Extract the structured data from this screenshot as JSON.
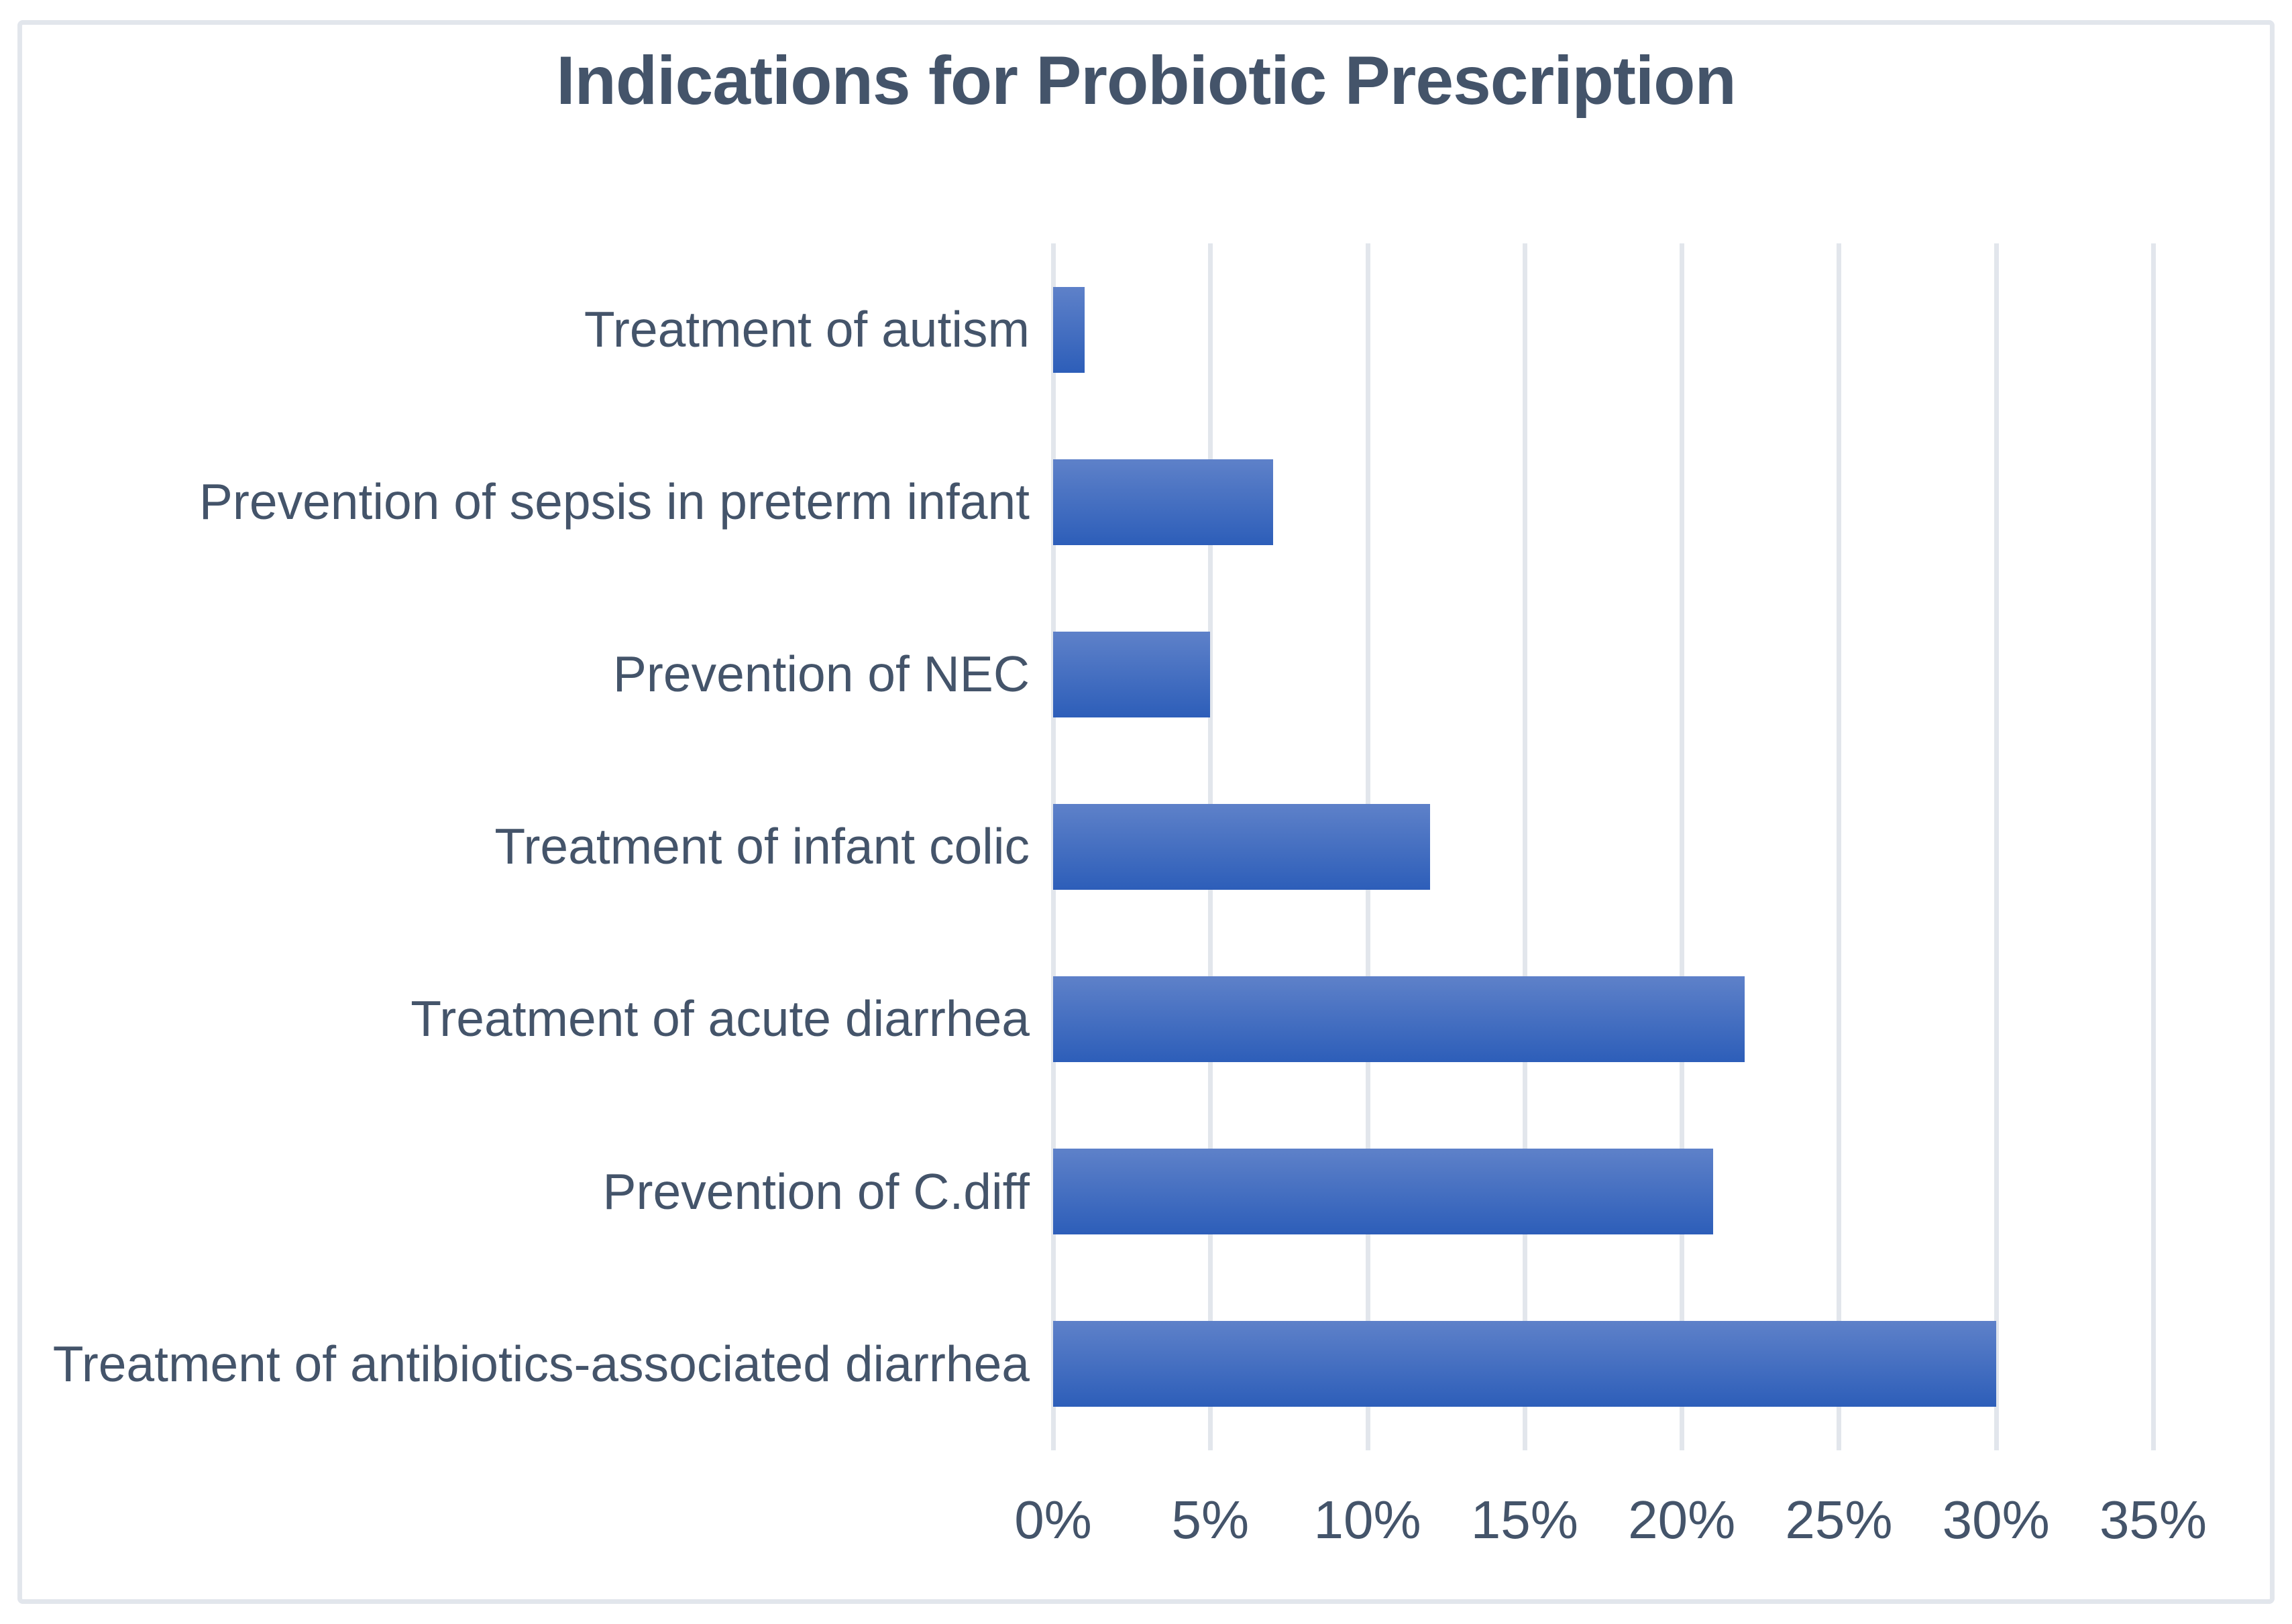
{
  "chart_data": {
    "type": "bar",
    "orientation": "horizontal",
    "title": "Indications for Probiotic Prescription",
    "categories": [
      "Treatment of autism",
      "Prevention of sepsis in preterm infant",
      "Prevention of NEC",
      "Treatment of infant colic",
      "Treatment of acute diarrhea",
      "Prevention of C.diff",
      "Treatment of antibiotics-associated diarrhea"
    ],
    "values": [
      1,
      7,
      5,
      12,
      22,
      21,
      30
    ],
    "value_unit": "%",
    "x_ticks": [
      "0%",
      "5%",
      "10%",
      "15%",
      "20%",
      "25%",
      "30%",
      "35%"
    ],
    "xlim": [
      0,
      35
    ],
    "xlabel": "",
    "ylabel": "",
    "grid": "vertical-gridlines-only",
    "legend": "none",
    "colors": {
      "bar_gradient_top": "#5E81C9",
      "bar_gradient_bottom": "#2D5EB9",
      "text": "#44546A",
      "gridline": "#E2E6EC",
      "frame_border": "#E2E6EC",
      "background": "#FFFFFF"
    }
  }
}
